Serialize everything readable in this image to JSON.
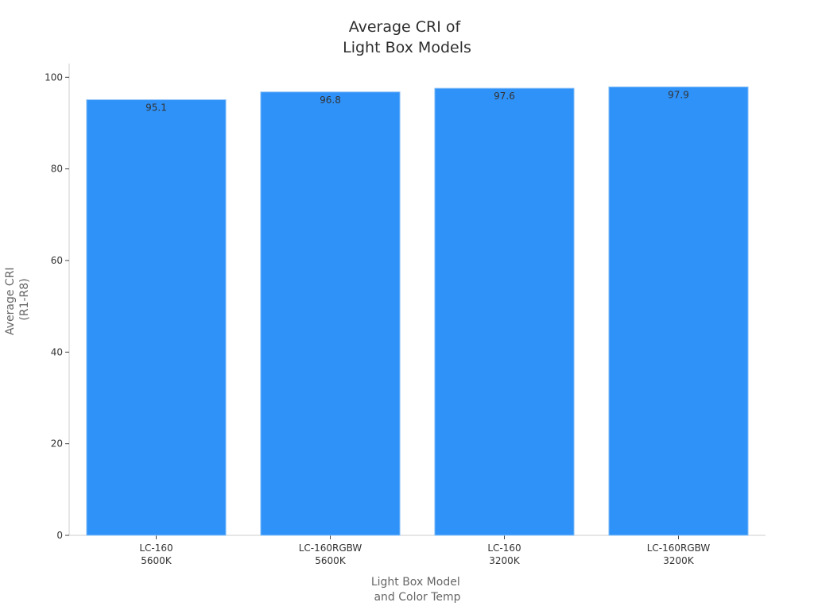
{
  "chart_data": {
    "type": "bar",
    "title": [
      "Average CRI of",
      "Light Box Models"
    ],
    "xlabel": [
      "Light Box Model",
      "and Color Temp"
    ],
    "ylabel": [
      "Average CRI",
      "(R1-R8)"
    ],
    "categories": [
      [
        "LC-160",
        "5600K"
      ],
      [
        "LC-160RGBW",
        "5600K"
      ],
      [
        "LC-160",
        "3200K"
      ],
      [
        "LC-160RGBW",
        "3200K"
      ]
    ],
    "values": [
      95.1,
      96.8,
      97.6,
      97.9
    ],
    "data_labels": [
      "95.1",
      "96.8",
      "97.6",
      "97.9"
    ],
    "ylim": [
      0,
      103
    ],
    "yticks": [
      0,
      20,
      40,
      60,
      80,
      100
    ],
    "grid": false,
    "bar_color": "#2f92f8"
  }
}
